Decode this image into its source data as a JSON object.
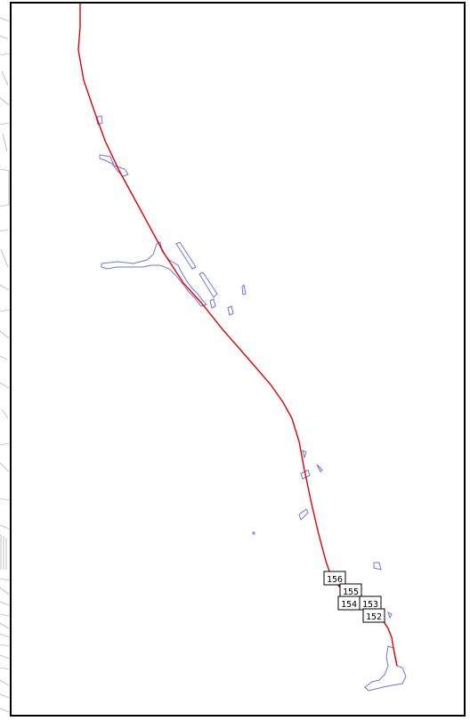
{
  "map": {
    "alignment_color": "#e00000",
    "water_color": "#6f74d8",
    "border_color": "#000000",
    "background_color": "#ffffff",
    "street_color": "#9a9a9a"
  },
  "stations": [
    {
      "id": "station-156",
      "label": "156"
    },
    {
      "id": "station-155",
      "label": "155"
    },
    {
      "id": "station-154",
      "label": "154"
    },
    {
      "id": "station-153",
      "label": "153"
    },
    {
      "id": "station-152",
      "label": "152"
    }
  ]
}
